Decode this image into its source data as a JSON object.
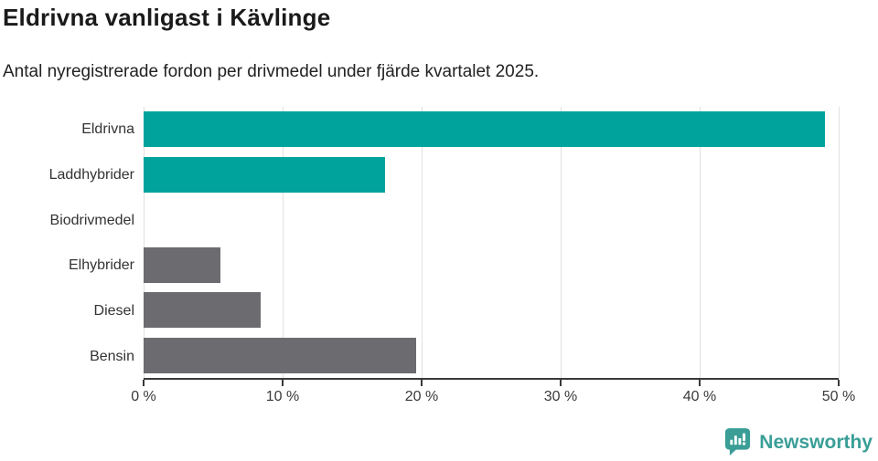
{
  "header": {
    "title": "Eldrivna vanligast i Kävlinge",
    "subtitle": "Antal nyregistrerade fordon per drivmedel under fjärde kvartalet 2025."
  },
  "chart_data": {
    "type": "bar",
    "orientation": "horizontal",
    "title": "Eldrivna vanligast i Kävlinge",
    "subtitle": "Antal nyregistrerade fordon per drivmedel under fjärde kvartalet 2025.",
    "categories": [
      "Eldrivna",
      "Laddhybrider",
      "Biodrivmedel",
      "Elhybrider",
      "Diesel",
      "Bensin"
    ],
    "values": [
      49,
      17.4,
      0,
      5.5,
      8.4,
      19.6
    ],
    "unit": "%",
    "xlim": [
      0,
      50
    ],
    "x_tick_values": [
      0,
      10,
      20,
      30,
      40,
      50
    ],
    "x_tick_labels": [
      "0 %",
      "10 %",
      "20 %",
      "30 %",
      "40 %",
      "50 %"
    ],
    "bar_colors": [
      "#00a39b",
      "#00a39b",
      "#00a39b",
      "#6b6b70",
      "#6b6b70",
      "#6b6b70"
    ],
    "grid": true,
    "legend": "none"
  },
  "colors": {
    "teal": "#00a39b",
    "gray": "#6b6b70",
    "axis": "#3a3a3a",
    "gridline": "#e0e0e0",
    "title_text": "#1a1a1a",
    "body_text": "#333333",
    "brand_teal": "#3a9e97"
  },
  "footer": {
    "brand_name": "Newsworthy",
    "logo_icon": "speech-bubble-bar-chart-icon"
  }
}
